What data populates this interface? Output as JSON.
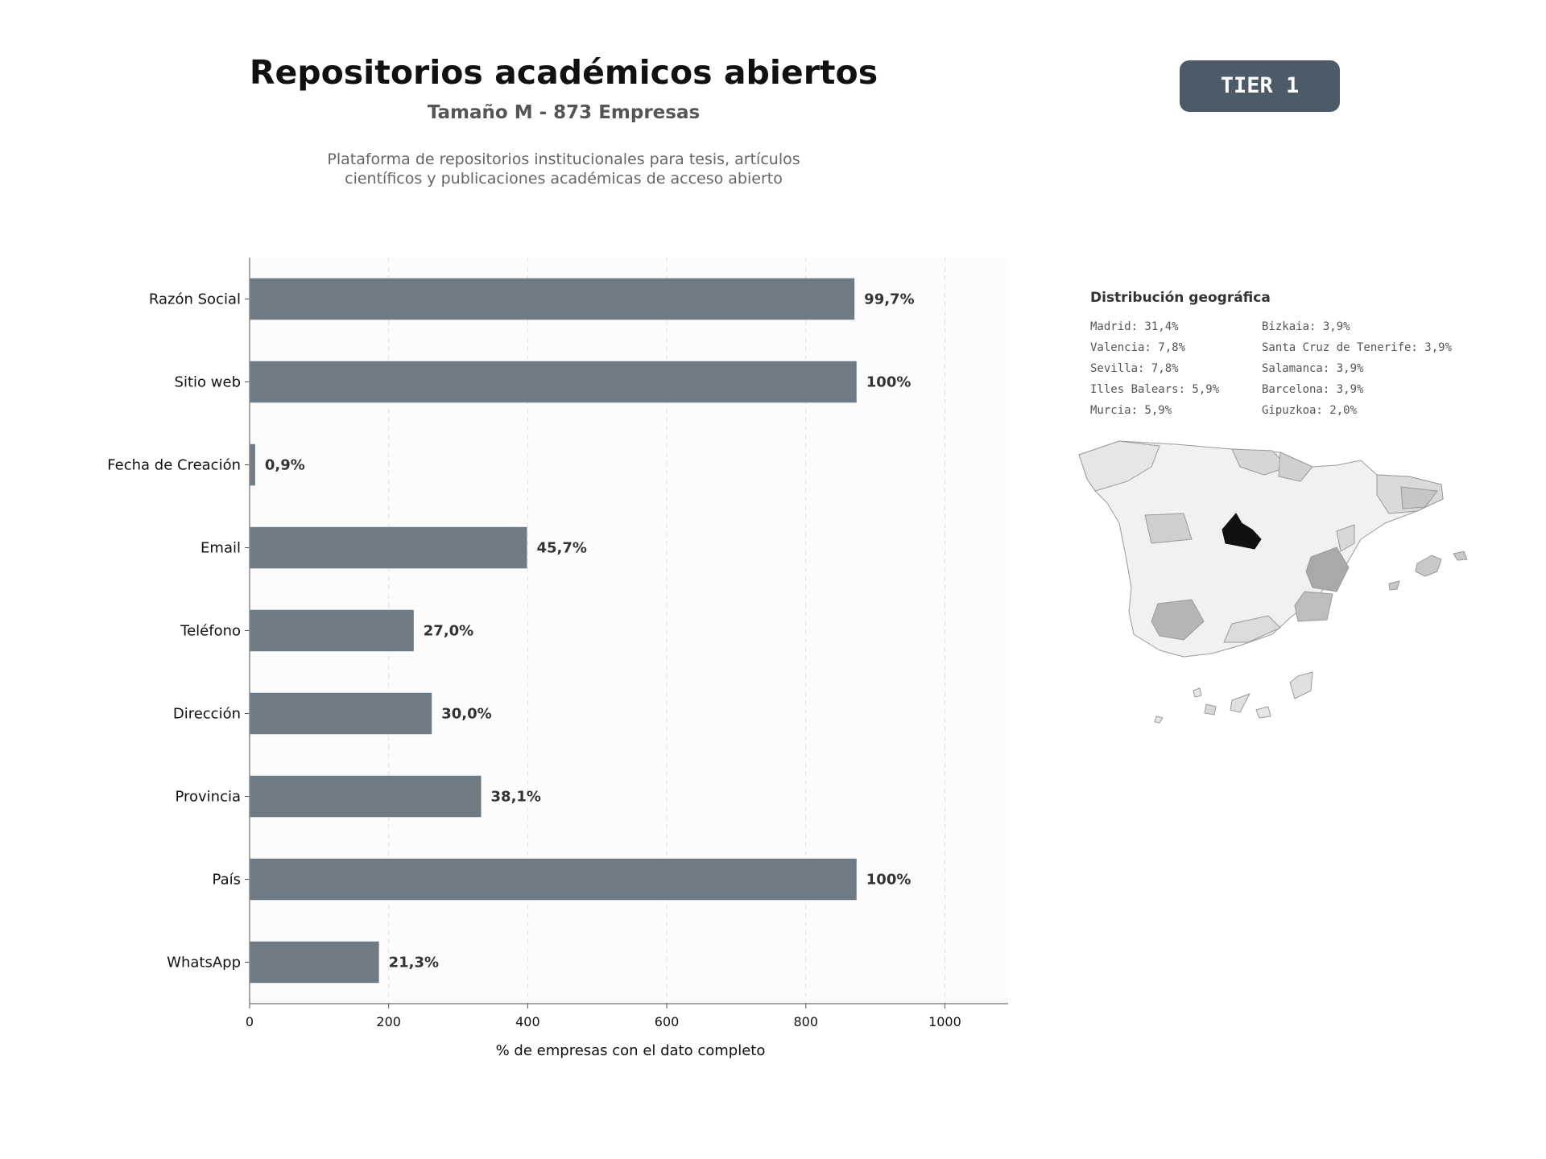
{
  "header": {
    "title": "Repositorios académicos abiertos",
    "subtitle": "Tamaño M - 873 Empresas",
    "description_lines": [
      "Plataforma de repositorios institucionales para tesis, artículos",
      "científicos y publicaciones académicas de acceso abierto"
    ],
    "tier_label": "TIER 1"
  },
  "chart_data": {
    "type": "bar",
    "orientation": "horizontal",
    "categories": [
      "Razón Social",
      "Sitio web",
      "Fecha de Creación",
      "Email",
      "Teléfono",
      "Dirección",
      "Provincia",
      "País",
      "WhatsApp"
    ],
    "values": [
      870,
      873,
      8,
      399,
      236,
      262,
      333,
      873,
      186
    ],
    "value_labels": [
      "99,7%",
      "100%",
      "0,9%",
      "45,7%",
      "27,0%",
      "30,0%",
      "38,1%",
      "100%",
      "21,3%"
    ],
    "xlabel": "% de empresas con el dato completo",
    "ylabel": "",
    "xlim": [
      0,
      1091
    ],
    "xticks": [
      0,
      200,
      400,
      600,
      800,
      1000
    ],
    "grid": "vertical-dashed",
    "bar_color": "#6e7a84"
  },
  "geo": {
    "title": "Distribución geográfica",
    "col1": [
      "Madrid: 31,4%",
      "Valencia: 7,8%",
      "Sevilla: 7,8%",
      "Illes Balears: 5,9%",
      "Murcia: 5,9%"
    ],
    "col2": [
      "Bizkaia: 3,9%",
      "Santa Cruz de Tenerife: 3,9%",
      "Salamanca: 3,9%",
      "Barcelona: 3,9%",
      "Gipuzkoa: 2,0%"
    ]
  },
  "colors": {
    "bar": "#6e7a84",
    "badge": "#4d5a68",
    "map_highlight": "#111111"
  }
}
